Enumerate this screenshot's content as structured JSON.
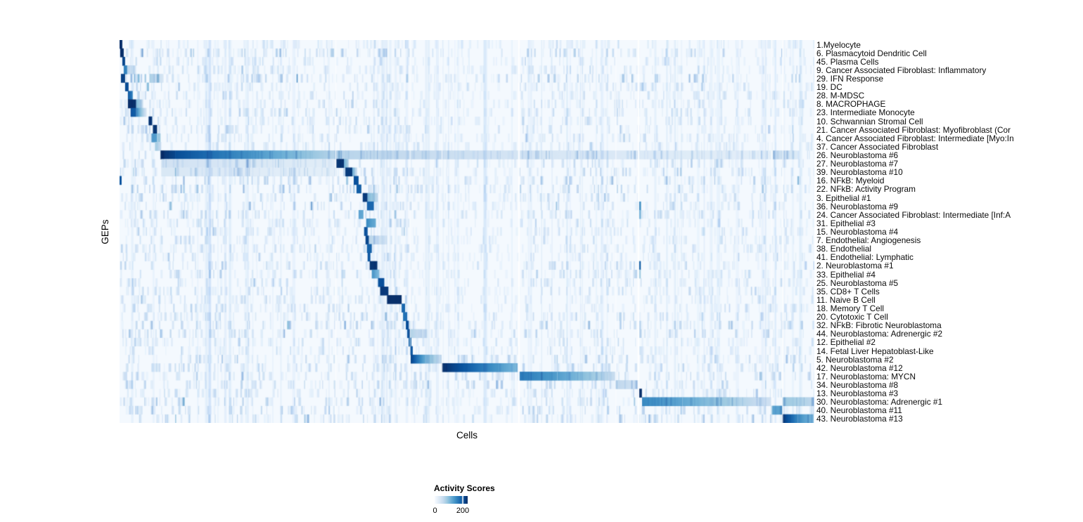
{
  "chart_data": {
    "type": "heatmap",
    "title": "",
    "xlabel": "Cells",
    "ylabel": "GEPs",
    "legend": {
      "title": "Activity Scores",
      "tick_labels": [
        "0",
        "200"
      ],
      "tick_values": [
        0,
        200
      ]
    },
    "value_range": [
      0,
      235
    ],
    "colorscale": {
      "name": "Blues",
      "low": "#F7FBFF",
      "high": "#08306B",
      "colors": [
        "#F7FBFF",
        "#DEEBF7",
        "#C6DBEF",
        "#9ECAE1",
        "#6BAED6",
        "#4292C6",
        "#2171B5",
        "#08519C",
        "#08306B"
      ]
    },
    "layout": {
      "grid": false,
      "legend_position": "bottom",
      "row_count": 45
    },
    "rows": [
      {
        "label": "1.Myelocyte",
        "noise": 0.18,
        "segments": [
          [
            0.0,
            0.004,
            235,
            235
          ]
        ]
      },
      {
        "label": "6. Plasmacytoid Dendritic Cell",
        "noise": 0.55,
        "segments": [
          [
            0.001,
            0.006,
            235,
            235
          ]
        ]
      },
      {
        "label": "45. Plasma Cells",
        "noise": 0.2,
        "segments": [
          [
            0.004,
            0.008,
            215,
            215
          ]
        ]
      },
      {
        "label": "9. Cancer Associated Fibroblast: Inflammatory",
        "noise": 0.3,
        "segments": [
          [
            0.006,
            0.011,
            160,
            160
          ],
          [
            0.011,
            0.024,
            70,
            30
          ]
        ]
      },
      {
        "label": "29. IFN Response",
        "noise": 0.55,
        "segments": [
          [
            0.002,
            0.008,
            220,
            220
          ],
          [
            0.043,
            0.062,
            80,
            40
          ]
        ]
      },
      {
        "label": "19. DC",
        "noise": 0.28,
        "segments": [
          [
            0.008,
            0.013,
            210,
            210
          ]
        ]
      },
      {
        "label": "28. M-MDSC",
        "noise": 0.3,
        "segments": [
          [
            0.012,
            0.019,
            205,
            150
          ]
        ]
      },
      {
        "label": "8. MACROPHAGE",
        "noise": 0.32,
        "segments": [
          [
            0.012,
            0.024,
            235,
            235
          ],
          [
            0.024,
            0.034,
            110,
            50
          ]
        ]
      },
      {
        "label": "23. Intermediate Monocyte",
        "noise": 0.3,
        "segments": [
          [
            0.016,
            0.024,
            195,
            195
          ],
          [
            0.024,
            0.039,
            150,
            35
          ]
        ]
      },
      {
        "label": "10. Schwannian Stromal Cell",
        "noise": 0.28,
        "segments": [
          [
            0.042,
            0.047,
            225,
            225
          ]
        ]
      },
      {
        "label": "21. Cancer Associated Fibroblast: Myofibroblast (Cor",
        "noise": 0.3,
        "segments": [
          [
            0.048,
            0.054,
            230,
            230
          ]
        ]
      },
      {
        "label": "4. Cancer Associated Fibroblast: Intermediate [Myo:In",
        "noise": 0.3,
        "segments": [
          [
            0.046,
            0.054,
            135,
            135
          ],
          [
            0.054,
            0.059,
            90,
            90
          ]
        ]
      },
      {
        "label": "37. Cancer Associated Fibroblast",
        "noise": 0.28,
        "segments": [
          [
            0.051,
            0.06,
            85,
            55
          ]
        ]
      },
      {
        "label": "26. Neuroblastoma #6",
        "noise": 0.45,
        "segments": [
          [
            0.059,
            0.08,
            235,
            215
          ],
          [
            0.08,
            0.31,
            210,
            70
          ],
          [
            0.31,
            0.574,
            70,
            40
          ],
          [
            0.574,
            0.938,
            40,
            22
          ],
          [
            0.94,
            0.975,
            60,
            30
          ]
        ]
      },
      {
        "label": "27. Neuroblastoma #7",
        "noise": 0.42,
        "segments": [
          [
            0.06,
            0.31,
            45,
            25
          ],
          [
            0.312,
            0.323,
            230,
            230
          ],
          [
            0.323,
            0.33,
            120,
            60
          ]
        ]
      },
      {
        "label": "39. Neuroblastoma #10",
        "noise": 0.42,
        "segments": [
          [
            0.06,
            0.31,
            35,
            22
          ],
          [
            0.325,
            0.335,
            225,
            225
          ],
          [
            0.335,
            0.342,
            110,
            50
          ]
        ]
      },
      {
        "label": "16. NFkB: Myeloid",
        "noise": 0.5,
        "segments": [
          [
            0.0,
            0.003,
            200,
            200
          ],
          [
            0.337,
            0.344,
            205,
            205
          ]
        ]
      },
      {
        "label": "22. NFkB: Activity Program",
        "noise": 0.6,
        "segments": [
          [
            0.341,
            0.348,
            195,
            195
          ]
        ]
      },
      {
        "label": "3. Epithelial #1",
        "noise": 0.3,
        "segments": [
          [
            0.35,
            0.357,
            225,
            225
          ],
          [
            0.357,
            0.372,
            110,
            60
          ]
        ]
      },
      {
        "label": "36. Neuroblastoma #9",
        "noise": 0.38,
        "segments": [
          [
            0.356,
            0.366,
            185,
            185
          ],
          [
            0.7465,
            0.7505,
            150,
            150
          ]
        ]
      },
      {
        "label": "24. Cancer Associated Fibroblast: Intermediate [Inf:A",
        "noise": 0.4,
        "segments": [
          [
            0.344,
            0.351,
            125,
            125
          ],
          [
            0.7465,
            0.7505,
            110,
            110
          ]
        ]
      },
      {
        "label": "31. Epithelial #3",
        "noise": 0.3,
        "segments": [
          [
            0.355,
            0.369,
            155,
            115
          ]
        ]
      },
      {
        "label": "15. Neuroblastoma #4",
        "noise": 0.3,
        "segments": [
          [
            0.352,
            0.357,
            195,
            195
          ]
        ]
      },
      {
        "label": "7. Endothelial: Angiogenesis",
        "noise": 0.3,
        "segments": [
          [
            0.354,
            0.359,
            215,
            215
          ],
          [
            0.359,
            0.385,
            70,
            35
          ]
        ]
      },
      {
        "label": "38. Endothelial",
        "noise": 0.3,
        "segments": [
          [
            0.356,
            0.363,
            190,
            190
          ]
        ]
      },
      {
        "label": "41. Endothelial: Lymphatic",
        "noise": 0.26,
        "segments": [
          [
            0.357,
            0.361,
            200,
            200
          ]
        ]
      },
      {
        "label": "2. Neuroblastoma #1",
        "noise": 0.32,
        "segments": [
          [
            0.36,
            0.371,
            230,
            230
          ],
          [
            0.7468,
            0.7502,
            195,
            195
          ]
        ]
      },
      {
        "label": "33. Epithelial #4",
        "noise": 0.3,
        "segments": [
          [
            0.363,
            0.374,
            145,
            100
          ],
          [
            0.7468,
            0.7502,
            85,
            85
          ]
        ]
      },
      {
        "label": "25. Neuroblastoma #5",
        "noise": 0.3,
        "segments": [
          [
            0.372,
            0.381,
            205,
            205
          ]
        ]
      },
      {
        "label": "35. CD8+ T Cells",
        "noise": 0.32,
        "segments": [
          [
            0.375,
            0.387,
            225,
            225
          ]
        ]
      },
      {
        "label": "11. Naive B Cell",
        "noise": 0.3,
        "segments": [
          [
            0.385,
            0.406,
            235,
            235
          ]
        ]
      },
      {
        "label": "18. Memory T Cell",
        "noise": 0.3,
        "segments": [
          [
            0.406,
            0.411,
            185,
            185
          ]
        ]
      },
      {
        "label": "20. Cytotoxic T Cell",
        "noise": 0.36,
        "segments": [
          [
            0.408,
            0.414,
            175,
            175
          ]
        ]
      },
      {
        "label": "32. NFkB: Fibrotic Neuroblastoma",
        "noise": 0.5,
        "segments": [
          [
            0.412,
            0.416,
            205,
            205
          ]
        ]
      },
      {
        "label": "44. Neuroblastoma: Adrenergic #2",
        "noise": 0.42,
        "segments": [
          [
            0.414,
            0.418,
            195,
            195
          ],
          [
            0.418,
            0.443,
            75,
            40
          ]
        ]
      },
      {
        "label": "12. Epithelial #2",
        "noise": 0.3,
        "segments": [
          [
            0.416,
            0.42,
            190,
            190
          ]
        ]
      },
      {
        "label": "14. Fetal Liver Hepatoblast-Like",
        "noise": 0.3,
        "segments": [
          [
            0.418,
            0.422,
            200,
            200
          ]
        ]
      },
      {
        "label": "5. Neuroblastoma #2",
        "noise": 0.42,
        "segments": [
          [
            0.419,
            0.441,
            220,
            115
          ],
          [
            0.441,
            0.463,
            110,
            55
          ]
        ]
      },
      {
        "label": "42. Neuroblastoma #12",
        "noise": 0.36,
        "segments": [
          [
            0.464,
            0.5,
            235,
            195
          ],
          [
            0.5,
            0.573,
            195,
            105
          ]
        ]
      },
      {
        "label": "17. Neuroblastoma: MYCN",
        "noise": 0.36,
        "segments": [
          [
            0.575,
            0.63,
            170,
            135
          ],
          [
            0.63,
            0.713,
            135,
            55
          ]
        ]
      },
      {
        "label": "34. Neuroblastoma #8",
        "noise": 0.46,
        "segments": [
          [
            0.714,
            0.746,
            65,
            45
          ]
        ]
      },
      {
        "label": "13. Neuroblastoma #3",
        "noise": 0.36,
        "segments": [
          [
            0.7478,
            0.7518,
            235,
            235
          ]
        ]
      },
      {
        "label": "30. Neuroblastoma: Adrenergic #1",
        "noise": 0.46,
        "segments": [
          [
            0.752,
            0.81,
            155,
            125
          ],
          [
            0.81,
            0.938,
            125,
            45
          ],
          [
            0.954,
            0.999,
            90,
            65
          ]
        ]
      },
      {
        "label": "40. Neuroblastoma #11",
        "noise": 0.42,
        "segments": [
          [
            0.938,
            0.954,
            130,
            130
          ]
        ]
      },
      {
        "label": "43. Neuroblastoma #13",
        "noise": 0.46,
        "segments": [
          [
            0.954,
            0.976,
            230,
            155
          ],
          [
            0.976,
            0.999,
            150,
            105
          ]
        ]
      }
    ],
    "separators": [
      [
        0.3105,
        1.5,
        0.7
      ],
      [
        0.4175,
        1.5,
        0.55
      ],
      [
        0.4635,
        1.5,
        0.55
      ],
      [
        0.5735,
        2.5,
        0.85
      ],
      [
        0.7135,
        1.5,
        0.55
      ],
      [
        0.7455,
        2.5,
        0.9
      ],
      [
        0.938,
        1.5,
        0.55
      ],
      [
        0.9535,
        1.5,
        0.65
      ]
    ]
  }
}
